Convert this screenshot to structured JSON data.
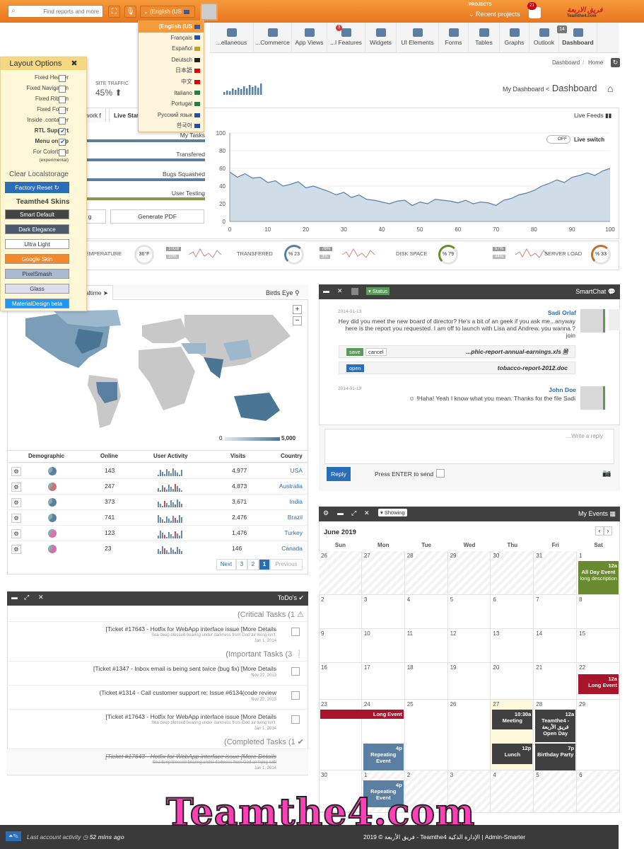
{
  "topbar": {
    "search_placeholder": "Find reports and more",
    "lang_label": "(English (US",
    "projects_label": "PROJECTS",
    "recent_projects": "Recent projects",
    "notif_count": "21",
    "logo_ar": "فريق الاربعة",
    "logo_en": "Teamthe4.com"
  },
  "languages": [
    "(English (US",
    "Français",
    "Español",
    "Deutsch",
    "日本語",
    "中文",
    "Italiano",
    "Portugal",
    "Русский язык",
    "한국어"
  ],
  "nav": [
    {
      "label": "...ellaneous"
    },
    {
      "label": "...Commerce"
    },
    {
      "label": "App Views"
    },
    {
      "label": "...l Features",
      "badge": "3"
    },
    {
      "label": "Widgets"
    },
    {
      "label": "UI Elements"
    },
    {
      "label": "Forms"
    },
    {
      "label": "Tables"
    },
    {
      "label": "Graphs"
    },
    {
      "label": "Outlook",
      "badge": "14"
    },
    {
      "label": "Dashboard"
    }
  ],
  "layout_options": {
    "title": "Layout Options",
    "items": [
      {
        "label": "Fixed Header",
        "checked": false
      },
      {
        "label": "Fixed Navigation",
        "checked": false
      },
      {
        "label": "Fixed Ribbon",
        "checked": false
      },
      {
        "label": "Fixed Footer",
        "checked": false
      },
      {
        "label": "Inside .container",
        "checked": false
      },
      {
        "label": "RTL Support",
        "checked": true
      },
      {
        "label": "Menu on top",
        "checked": true
      },
      {
        "label": "For Colorblind",
        "checked": false
      }
    ],
    "colorblind_sub": "(experimental)",
    "clear": "Clear Localstorage",
    "factory": "Factory Reset",
    "skins_title": "Teamthe4 Skins",
    "skins": [
      "Smart Default",
      "Dark Elegance",
      "Ultra Light",
      "Google Skin",
      "PixelSmash",
      "Glass",
      "MaterialDesign beta"
    ]
  },
  "breadcrumb": {
    "a": "Dashboard",
    "b": "Home"
  },
  "site_traffic": {
    "label": "SITE TRAFFIC",
    "value": "45%"
  },
  "page_title": {
    "small": "My Dashboard <",
    "big": "Dashboard"
  },
  "tabs": [
    "Network",
    "Live Stats"
  ],
  "live_feeds": "Live Feeds",
  "live_switch": {
    "label": "Live switch",
    "state": "OFF"
  },
  "progress": [
    {
      "label": "My Tasks",
      "pct": 100
    },
    {
      "label": "Transfered",
      "pct": 100
    },
    {
      "label": "Bugs Squashed",
      "pct": 100
    },
    {
      "label": "User Testing",
      "pct": 100
    }
  ],
  "buttons": {
    "generate": "Generate PDF"
  },
  "chart_data": {
    "type": "area",
    "x": [
      0,
      2,
      4,
      6,
      8,
      10,
      12,
      14,
      16,
      18,
      20,
      22,
      24,
      26,
      28,
      30,
      32,
      34,
      36,
      38,
      40,
      42,
      44,
      46,
      48,
      50,
      52,
      54,
      56,
      58,
      60,
      62,
      64,
      66,
      68,
      70,
      72,
      74,
      76,
      78,
      80,
      82,
      84,
      86,
      88,
      90,
      92,
      94,
      96,
      98,
      100
    ],
    "y": [
      56,
      50,
      54,
      49,
      50,
      44,
      46,
      40,
      42,
      45,
      38,
      40,
      37,
      34,
      30,
      33,
      27,
      30,
      25,
      24,
      22,
      20,
      23,
      24,
      18,
      22,
      20,
      25,
      24,
      23,
      21,
      24,
      20,
      22,
      21,
      18,
      24,
      26,
      30,
      32,
      35,
      40,
      43,
      47,
      44,
      50,
      52,
      55,
      52,
      57,
      60
    ],
    "ylim": [
      0,
      100
    ],
    "xlim": [
      0,
      100
    ],
    "yticks": [
      0,
      20,
      40,
      60,
      80,
      100
    ],
    "xticks": [
      0,
      10,
      20,
      30,
      40,
      50,
      60,
      70,
      80,
      90,
      100
    ]
  },
  "gauges": [
    {
      "label": "TEMPERATURE",
      "value": "36°F"
    },
    {
      "tag1": "10GB",
      "tag2": "10%"
    },
    {
      "label": "TRANSFERED",
      "value": "% 23"
    },
    {
      "tag1": "76%",
      "tag2": "3%"
    },
    {
      "label": "DISK SPACE",
      "value": "% 79"
    },
    {
      "tag1": "97%",
      "tag2": "44%"
    },
    {
      "label": "SERVER LOAD",
      "value": "% 33"
    }
  ],
  "map_panel": {
    "realtime": "Realtime",
    "birds_eye": "Birds Eye",
    "legend_min": "0",
    "legend_max": "5,000"
  },
  "table": {
    "headers": [
      "Demographic",
      "Online",
      "User Activity",
      "Visits",
      "Country"
    ],
    "rows": [
      {
        "online": "143",
        "visits": "4,977",
        "country": "USA"
      },
      {
        "online": "247",
        "visits": "4,873",
        "country": "Australia"
      },
      {
        "online": "373",
        "visits": "3,671",
        "country": "India"
      },
      {
        "online": "741",
        "visits": "2,476",
        "country": "Brazil"
      },
      {
        "online": "123",
        "visits": "1,476",
        "country": "Turkey"
      },
      {
        "online": "23",
        "visits": "146",
        "country": "Canada"
      }
    ]
  },
  "pager": [
    "Next",
    "3",
    "2",
    "1",
    "Previous"
  ],
  "todo": {
    "title": "ToDo's",
    "critical": "(Critical Tasks (1",
    "important": "(Important Tasks (3",
    "completed": "(Completed Tasks (1",
    "items": [
      {
        "text": "[Ticket #17643 - Hotfix for WebApp interface issue [More Details",
        "sub": "Sea deep blessed bearing under darkness from God air living isn't.",
        "date": "Jan 1, 2014"
      },
      {
        "text": "[Ticket #1347 - Inbox email is being sent twice (bug fix) [More Details",
        "date": "Nov 22, 2013"
      },
      {
        "text": "(Ticket #1314 - Call customer support re: Issue #6134(code review",
        "date": "Nov 22, 2013"
      },
      {
        "text": "[Ticket #17643 - Hotfix for WebApp interface issue [More Details",
        "sub": "Sea deep blessed bearing under darkness from God air living isn't.",
        "date": "Jan 1, 2014"
      },
      {
        "text": "[Ticket #17643 - Hotfix for WebApp interface issue [More Details",
        "sub": "Sea deep blessed bearing under darkness from God air living isn't",
        "date": "Jan 1, 2014"
      }
    ]
  },
  "chat": {
    "title": "SmartChat",
    "status": "Status",
    "m1": {
      "date": "2014-01-13",
      "name": "Sadi Orlaf",
      "text": "Hey did you meet the new board of director? He's a bit of an geek if you ask me...anyway here is the report you requested. I am off to launch with Lisa and Andrew, you wanna ?join"
    },
    "file1": {
      "name": "...phic-report-annual-earnings.xls",
      "save": "save",
      "cancel": "cancel"
    },
    "file2": {
      "name": "tobacco-report-2012.doc",
      "open": "open"
    },
    "m2": {
      "date": "2014-01-13",
      "name": "John Doe",
      "text": "☺ !Haha! Yeah I know what you mean. Thanks for the file Sadi"
    },
    "placeholder": "...Write a reply",
    "reply": "Reply",
    "press_enter": "Press ENTER to send"
  },
  "calendar": {
    "title": "My Events",
    "showing": "Showing",
    "month": "June 2019",
    "days": [
      "Sun",
      "Mon",
      "Tue",
      "Wed",
      "Thu",
      "Fri",
      "Sat"
    ],
    "events": {
      "allday": "All Day Event",
      "allday_time": "12a",
      "allday_desc": "long description",
      "long1": "Long Event",
      "long1_time": "12a",
      "long2": "Long Event",
      "meeting_time": "10:30a",
      "meeting": "Meeting",
      "td_time": "12a",
      "td": "Teamthe4 - فريق الأربعة Open Day",
      "lunch_time": "12p",
      "lunch": "Lunch",
      "bday_time": "7p",
      "bday": "Birthday Party",
      "rep_time": "4p",
      "rep": "Repeating Event",
      "rep2_time": "4p",
      "rep2": "Repeating Event"
    }
  },
  "footer": {
    "activity": "Last account activity",
    "ago": "52 mins ago",
    "copyright": "2019 © فريق الأربعة - Teamthe4 الإدارة الذكية | Admin-Smarter"
  },
  "watermark": "Teamthe4.com"
}
